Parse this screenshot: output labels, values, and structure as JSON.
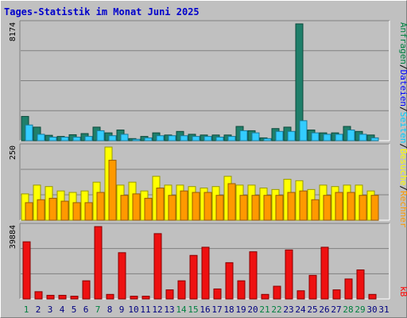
{
  "title": "Tages-Statistik im Monat Juni 2025",
  "chart_data": [
    {
      "type": "bar",
      "name": "requests",
      "ymax_label": "8174",
      "ylim": [
        0,
        8174
      ],
      "categories": [
        "1",
        "2",
        "3",
        "4",
        "5",
        "6",
        "7",
        "8",
        "9",
        "10",
        "11",
        "12",
        "13",
        "14",
        "15",
        "16",
        "17",
        "18",
        "19",
        "20",
        "21",
        "22",
        "23",
        "24",
        "25",
        "26",
        "27",
        "28",
        "29",
        "30",
        "31"
      ],
      "series": [
        {
          "name": "Anfragen",
          "color": "#1f7f6a",
          "values": [
            1700,
            950,
            380,
            300,
            420,
            500,
            950,
            550,
            750,
            150,
            300,
            550,
            400,
            650,
            450,
            400,
            400,
            400,
            1000,
            700,
            200,
            850,
            950,
            8174,
            750,
            550,
            550,
            1000,
            650,
            400,
            0
          ]
        },
        {
          "name": "Dateien",
          "color": "#33ccff",
          "values": [
            1100,
            450,
            250,
            250,
            250,
            300,
            700,
            350,
            450,
            100,
            200,
            350,
            350,
            350,
            300,
            300,
            250,
            300,
            700,
            550,
            150,
            650,
            650,
            1400,
            550,
            450,
            450,
            750,
            450,
            200,
            0
          ]
        },
        {
          "name": "Seiten",
          "color": "#2e9eb8",
          "values": [
            0,
            0,
            0,
            0,
            0,
            0,
            0,
            0,
            0,
            0,
            0,
            0,
            0,
            0,
            0,
            0,
            0,
            0,
            0,
            0,
            0,
            0,
            0,
            0,
            0,
            0,
            0,
            0,
            0,
            0,
            0
          ]
        }
      ]
    },
    {
      "type": "bar",
      "name": "visits",
      "ymax_label": "250",
      "ylim": [
        0,
        250
      ],
      "categories": [
        "1",
        "2",
        "3",
        "4",
        "5",
        "6",
        "7",
        "8",
        "9",
        "10",
        "11",
        "12",
        "13",
        "14",
        "15",
        "16",
        "17",
        "18",
        "19",
        "20",
        "21",
        "22",
        "23",
        "24",
        "25",
        "26",
        "27",
        "28",
        "29",
        "30",
        "31"
      ],
      "series": [
        {
          "name": "Besuche",
          "color": "#ffff00",
          "values": [
            90,
            120,
            115,
            100,
            95,
            100,
            130,
            250,
            120,
            130,
            100,
            150,
            120,
            120,
            115,
            110,
            115,
            150,
            120,
            120,
            110,
            105,
            140,
            135,
            105,
            120,
            115,
            120,
            120,
            100,
            0
          ]
        },
        {
          "name": "Rechner",
          "color": "#ff9900",
          "values": [
            60,
            70,
            75,
            65,
            60,
            60,
            95,
            205,
            85,
            90,
            75,
            110,
            85,
            100,
            95,
            95,
            85,
            125,
            85,
            85,
            85,
            85,
            95,
            100,
            70,
            85,
            95,
            95,
            85,
            85,
            0
          ]
        }
      ]
    },
    {
      "type": "bar",
      "name": "kb",
      "ymax_label": "39884",
      "ylim": [
        0,
        39884
      ],
      "categories": [
        "1",
        "2",
        "3",
        "4",
        "5",
        "6",
        "7",
        "8",
        "9",
        "10",
        "11",
        "12",
        "13",
        "14",
        "15",
        "16",
        "17",
        "18",
        "19",
        "20",
        "21",
        "22",
        "23",
        "24",
        "25",
        "26",
        "27",
        "28",
        "29",
        "30",
        "31"
      ],
      "series": [
        {
          "name": "kB",
          "color": "#ee1111",
          "values": [
            31500,
            4000,
            2000,
            2000,
            1500,
            10000,
            39884,
            2500,
            25500,
            1500,
            1500,
            36000,
            5000,
            10000,
            24000,
            28500,
            5500,
            20000,
            10000,
            26000,
            2500,
            7000,
            27000,
            4500,
            13000,
            28500,
            5000,
            11000,
            16000,
            2500,
            0
          ]
        }
      ]
    }
  ],
  "x_labels": [
    {
      "text": "1",
      "color": "#008040"
    },
    {
      "text": "2",
      "color": "#000080"
    },
    {
      "text": "3",
      "color": "#000080"
    },
    {
      "text": "4",
      "color": "#000080"
    },
    {
      "text": "5",
      "color": "#000080"
    },
    {
      "text": "6",
      "color": "#000080"
    },
    {
      "text": "7",
      "color": "#008040"
    },
    {
      "text": "8",
      "color": "#000080"
    },
    {
      "text": "9",
      "color": "#000080"
    },
    {
      "text": "10",
      "color": "#000080"
    },
    {
      "text": "11",
      "color": "#000080"
    },
    {
      "text": "12",
      "color": "#000080"
    },
    {
      "text": "13",
      "color": "#000080"
    },
    {
      "text": "14",
      "color": "#008040"
    },
    {
      "text": "15",
      "color": "#008040"
    },
    {
      "text": "16",
      "color": "#000080"
    },
    {
      "text": "17",
      "color": "#000080"
    },
    {
      "text": "18",
      "color": "#000080"
    },
    {
      "text": "19",
      "color": "#000080"
    },
    {
      "text": "20",
      "color": "#000080"
    },
    {
      "text": "21",
      "color": "#008040"
    },
    {
      "text": "22",
      "color": "#008040"
    },
    {
      "text": "23",
      "color": "#000080"
    },
    {
      "text": "24",
      "color": "#000080"
    },
    {
      "text": "25",
      "color": "#000080"
    },
    {
      "text": "26",
      "color": "#000080"
    },
    {
      "text": "27",
      "color": "#000080"
    },
    {
      "text": "28",
      "color": "#008040"
    },
    {
      "text": "29",
      "color": "#008040"
    },
    {
      "text": "30",
      "color": "#000080"
    },
    {
      "text": "31",
      "color": "#000080"
    }
  ],
  "legend": {
    "top": [
      {
        "text": "Anfragen",
        "color": "#008040"
      },
      {
        "text": "/",
        "color": "#000000"
      },
      {
        "text": "Dateien",
        "color": "#0000ff"
      },
      {
        "text": "/",
        "color": "#000000"
      },
      {
        "text": "Seiten",
        "color": "#00ccff"
      },
      {
        "text": "/",
        "color": "#000000"
      },
      {
        "text": "Besuche",
        "color": "#ffff00"
      },
      {
        "text": "/",
        "color": "#000000"
      },
      {
        "text": "Rechner",
        "color": "#ff9900"
      }
    ],
    "bottom": [
      {
        "text": "kB",
        "color": "#ff0000"
      }
    ]
  }
}
